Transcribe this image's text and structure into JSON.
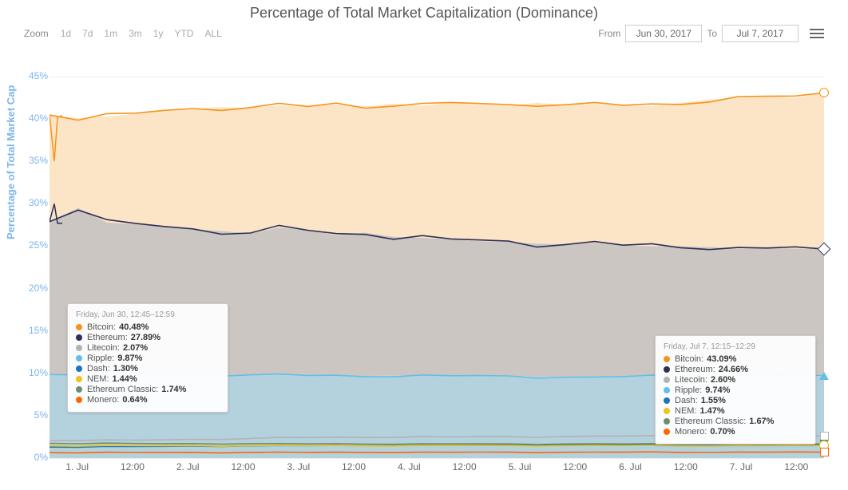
{
  "title": "Percentage of Total Market Capitalization (Dominance)",
  "toolbar": {
    "zoom_label": "Zoom",
    "zoom_buttons": [
      "1d",
      "7d",
      "1m",
      "3m",
      "1y",
      "YTD",
      "ALL"
    ],
    "from_label": "From",
    "to_label": "To",
    "from_date": "Jun 30, 2017",
    "to_date": "Jul 7, 2017"
  },
  "y_axis": {
    "label": "Percentage of Total Market Cap",
    "ticks": [
      0,
      5,
      10,
      15,
      20,
      25,
      30,
      35,
      40,
      45
    ],
    "min": 0,
    "max": 45,
    "tick_color": "#7cb5ec",
    "grid_color": "#eeeeee"
  },
  "x_axis": {
    "ticks": [
      "1. Jul",
      "12:00",
      "2. Jul",
      "12:00",
      "3. Jul",
      "12:00",
      "4. Jul",
      "12:00",
      "5. Jul",
      "12:00",
      "6. Jul",
      "12:00",
      "7. Jul",
      "12:00"
    ]
  },
  "chart": {
    "type": "area-stacked-lines",
    "background": "#ffffff",
    "series": [
      {
        "name": "Bitcoin",
        "color": "#f7931a",
        "fill": "#fce5c7",
        "marker": "circ",
        "data": [
          40.48,
          40.1,
          40.3,
          40.6,
          41.0,
          41.2,
          41.4,
          41.3,
          41.6,
          41.5,
          41.7,
          41.5,
          41.8,
          41.6,
          41.9,
          41.7,
          41.6,
          41.9,
          41.7,
          41.8,
          41.6,
          41.5,
          41.9,
          42.3,
          42.5,
          42.7,
          42.5,
          43.09
        ],
        "spike_start": [
          40.48,
          35.0,
          40.2,
          40.4
        ]
      },
      {
        "name": "Ethereum",
        "color": "#2e2e56",
        "fill": "#cbc6c2",
        "marker": "diamond",
        "data": [
          27.89,
          29.5,
          27.8,
          27.6,
          27.3,
          27.0,
          26.8,
          26.5,
          27.2,
          26.9,
          26.3,
          26.6,
          26.1,
          26.0,
          25.8,
          25.6,
          25.5,
          25.3,
          25.2,
          25.4,
          25.1,
          25.0,
          25.0,
          24.9,
          24.7,
          24.8,
          24.7,
          24.66
        ],
        "spike_start": [
          27.89,
          30.0,
          27.7,
          27.7
        ]
      },
      {
        "name": "Ripple",
        "color": "#62bfe8",
        "fill": "#b4d2de",
        "marker": "triup",
        "data": [
          9.87,
          9.9,
          10.0,
          10.0,
          9.95,
          9.9,
          9.85,
          9.8,
          9.8,
          9.75,
          9.7,
          9.7,
          9.72,
          9.7,
          9.7,
          9.68,
          9.65,
          9.6,
          9.55,
          9.5,
          9.6,
          9.65,
          9.7,
          9.7,
          9.72,
          9.74,
          9.74,
          9.74
        ]
      },
      {
        "name": "Litecoin",
        "color": "#b2b2b2",
        "fill": "transparent",
        "marker": "sq",
        "data": [
          2.07,
          2.1,
          2.1,
          2.11,
          2.15,
          2.2,
          2.25,
          2.3,
          2.4,
          2.42,
          2.45,
          2.45,
          2.48,
          2.5,
          2.49,
          2.5,
          2.51,
          2.5,
          2.55,
          2.58,
          2.6,
          2.6,
          2.6,
          2.6,
          2.6,
          2.6,
          2.6,
          2.6
        ]
      },
      {
        "name": "Ethereum Classic",
        "color": "#6f8c6f",
        "fill": "transparent",
        "marker": "tridn",
        "data": [
          1.74,
          1.73,
          1.72,
          1.71,
          1.7,
          1.7,
          1.69,
          1.69,
          1.68,
          1.68,
          1.68,
          1.68,
          1.67,
          1.67,
          1.67,
          1.67,
          1.67,
          1.67,
          1.67,
          1.67,
          1.67,
          1.67,
          1.67,
          1.67,
          1.67,
          1.67,
          1.67,
          1.67
        ]
      },
      {
        "name": "Dash",
        "color": "#1c75bc",
        "fill": "transparent",
        "marker": "circ",
        "data": [
          1.3,
          1.32,
          1.34,
          1.36,
          1.38,
          1.4,
          1.42,
          1.43,
          1.45,
          1.46,
          1.47,
          1.48,
          1.49,
          1.5,
          1.5,
          1.51,
          1.52,
          1.52,
          1.53,
          1.53,
          1.54,
          1.54,
          1.54,
          1.55,
          1.55,
          1.55,
          1.55,
          1.55
        ]
      },
      {
        "name": "NEM",
        "color": "#f0c419",
        "fill": "transparent",
        "marker": "circ",
        "data": [
          1.44,
          1.44,
          1.44,
          1.45,
          1.45,
          1.45,
          1.45,
          1.46,
          1.46,
          1.46,
          1.46,
          1.46,
          1.46,
          1.46,
          1.47,
          1.47,
          1.47,
          1.47,
          1.47,
          1.47,
          1.47,
          1.47,
          1.47,
          1.47,
          1.47,
          1.47,
          1.47,
          1.47
        ]
      },
      {
        "name": "Monero",
        "color": "#ff6600",
        "fill": "transparent",
        "marker": "sq",
        "data": [
          0.64,
          0.64,
          0.65,
          0.65,
          0.65,
          0.66,
          0.66,
          0.66,
          0.67,
          0.67,
          0.67,
          0.68,
          0.68,
          0.68,
          0.68,
          0.69,
          0.69,
          0.69,
          0.69,
          0.69,
          0.7,
          0.7,
          0.7,
          0.7,
          0.7,
          0.7,
          0.7,
          0.7
        ]
      }
    ]
  },
  "tooltips": {
    "left": {
      "title": "Friday, Jun 30, 12:45–12:59",
      "rows": [
        {
          "name": "Bitcoin",
          "color": "#f7931a",
          "val": "40.48%"
        },
        {
          "name": "Ethereum",
          "color": "#2e2e56",
          "val": "27.89%"
        },
        {
          "name": "Litecoin",
          "color": "#b2b2b2",
          "val": "2.07%"
        },
        {
          "name": "Ripple",
          "color": "#62bfe8",
          "val": "9.87%"
        },
        {
          "name": "Dash",
          "color": "#1c75bc",
          "val": "1.30%"
        },
        {
          "name": "NEM",
          "color": "#f0c419",
          "val": "1.44%"
        },
        {
          "name": "Ethereum Classic",
          "color": "#6f8c6f",
          "val": "1.74%"
        },
        {
          "name": "Monero",
          "color": "#ff6600",
          "val": "0.64%"
        }
      ]
    },
    "right": {
      "title": "Friday, Jul 7, 12:15–12:29",
      "rows": [
        {
          "name": "Bitcoin",
          "color": "#f7931a",
          "val": "43.09%"
        },
        {
          "name": "Ethereum",
          "color": "#2e2e56",
          "val": "24.66%"
        },
        {
          "name": "Litecoin",
          "color": "#b2b2b2",
          "val": "2.60%"
        },
        {
          "name": "Ripple",
          "color": "#62bfe8",
          "val": "9.74%"
        },
        {
          "name": "Dash",
          "color": "#1c75bc",
          "val": "1.55%"
        },
        {
          "name": "NEM",
          "color": "#f0c419",
          "val": "1.47%"
        },
        {
          "name": "Ethereum Classic",
          "color": "#6f8c6f",
          "val": "1.67%"
        },
        {
          "name": "Monero",
          "color": "#ff6600",
          "val": "0.70%"
        }
      ]
    }
  }
}
